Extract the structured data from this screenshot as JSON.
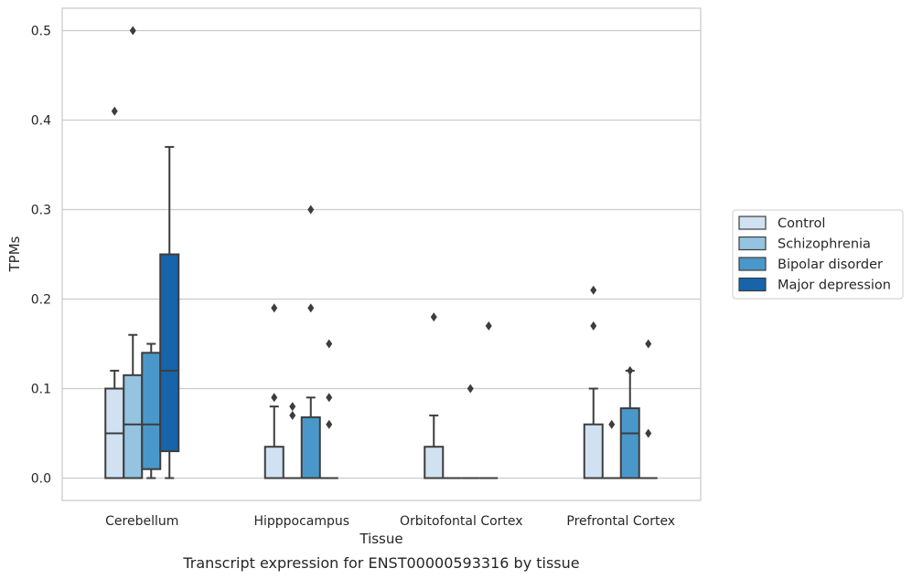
{
  "chart_data": {
    "type": "box",
    "xlabel": "Tissue",
    "ylabel": "TPMs",
    "caption": "Transcript expression for ENST00000593316 by tissue",
    "ylim": [
      -0.025,
      0.525
    ],
    "yticks": [
      "0.0",
      "0.1",
      "0.2",
      "0.3",
      "0.4",
      "0.5"
    ],
    "ytick_values": [
      0.0,
      0.1,
      0.2,
      0.3,
      0.4,
      0.5
    ],
    "grid": "horizontal",
    "legend_position": "right",
    "categories": [
      "Cerebellum",
      "Hipppocampus",
      "Orbitofontal Cortex",
      "Prefrontal Cortex"
    ],
    "series": [
      {
        "name": "Control",
        "color": "#d0e1f2",
        "boxes": [
          {
            "q1": 0.0,
            "median": 0.05,
            "q3": 0.1,
            "whislo": 0.0,
            "whishi": 0.12,
            "fliers": [
              0.41
            ]
          },
          {
            "q1": 0.0,
            "median": 0.0,
            "q3": 0.035,
            "whislo": 0.0,
            "whishi": 0.08,
            "fliers": [
              0.09,
              0.19
            ]
          },
          {
            "q1": 0.0,
            "median": 0.0,
            "q3": 0.035,
            "whislo": 0.0,
            "whishi": 0.07,
            "fliers": [
              0.18
            ]
          },
          {
            "q1": 0.0,
            "median": 0.0,
            "q3": 0.06,
            "whislo": 0.0,
            "whishi": 0.1,
            "fliers": [
              0.17,
              0.21
            ]
          }
        ]
      },
      {
        "name": "Schizophrenia",
        "color": "#94c4df",
        "boxes": [
          {
            "q1": 0.0,
            "median": 0.06,
            "q3": 0.115,
            "whislo": 0.0,
            "whishi": 0.16,
            "fliers": [
              0.5
            ]
          },
          {
            "q1": 0.0,
            "median": 0.0,
            "q3": 0.0,
            "whislo": 0.0,
            "whishi": 0.0,
            "fliers": [
              0.07,
              0.08
            ]
          },
          {
            "q1": 0.0,
            "median": 0.0,
            "q3": 0.0,
            "whislo": 0.0,
            "whishi": 0.0,
            "fliers": []
          },
          {
            "q1": 0.0,
            "median": 0.0,
            "q3": 0.0,
            "whislo": 0.0,
            "whishi": 0.0,
            "fliers": [
              0.06
            ]
          }
        ]
      },
      {
        "name": "Bipolar disorder",
        "color": "#4a98c9",
        "boxes": [
          {
            "q1": 0.01,
            "median": 0.06,
            "q3": 0.14,
            "whislo": 0.0,
            "whishi": 0.15,
            "fliers": []
          },
          {
            "q1": 0.0,
            "median": 0.0,
            "q3": 0.068,
            "whislo": 0.0,
            "whishi": 0.09,
            "fliers": [
              0.19,
              0.3
            ]
          },
          {
            "q1": 0.0,
            "median": 0.0,
            "q3": 0.0,
            "whislo": 0.0,
            "whishi": 0.0,
            "fliers": [
              0.1
            ]
          },
          {
            "q1": 0.0,
            "median": 0.05,
            "q3": 0.078,
            "whislo": 0.0,
            "whishi": 0.12,
            "fliers": [
              0.12
            ]
          }
        ]
      },
      {
        "name": "Major depression",
        "color": "#1764ab",
        "boxes": [
          {
            "q1": 0.03,
            "median": 0.12,
            "q3": 0.25,
            "whislo": 0.0,
            "whishi": 0.37,
            "fliers": []
          },
          {
            "q1": 0.0,
            "median": 0.0,
            "q3": 0.0,
            "whislo": 0.0,
            "whishi": 0.0,
            "fliers": [
              0.06,
              0.09,
              0.15
            ]
          },
          {
            "q1": 0.0,
            "median": 0.0,
            "q3": 0.0,
            "whislo": 0.0,
            "whishi": 0.0,
            "fliers": [
              0.17
            ]
          },
          {
            "q1": 0.0,
            "median": 0.0,
            "q3": 0.0,
            "whislo": 0.0,
            "whishi": 0.0,
            "fliers": [
              0.05,
              0.15
            ]
          }
        ]
      }
    ]
  }
}
